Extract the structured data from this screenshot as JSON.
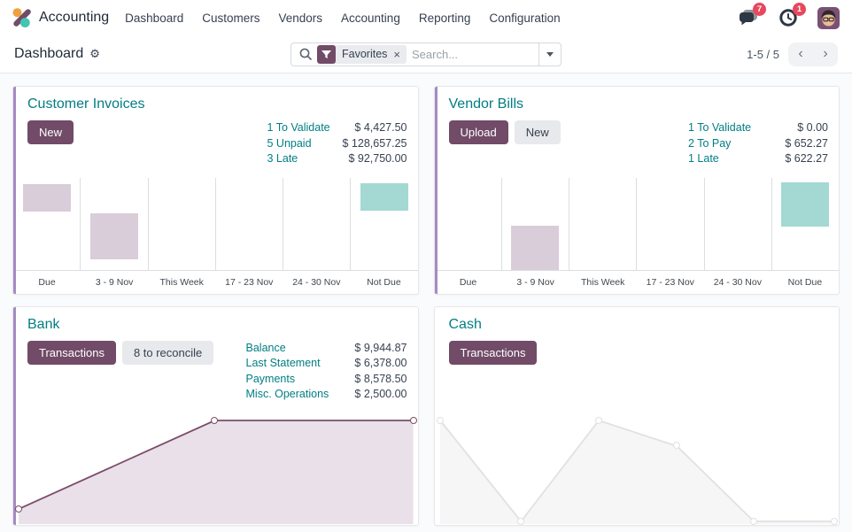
{
  "app": {
    "name": "Accounting"
  },
  "nav": {
    "items": [
      "Dashboard",
      "Customers",
      "Vendors",
      "Accounting",
      "Reporting",
      "Configuration"
    ]
  },
  "topbar": {
    "messages_badge": "7",
    "activities_badge": "1"
  },
  "control": {
    "title": "Dashboard",
    "gear_glyph": "⚙",
    "filter_chip": "Favorites",
    "chip_close_glyph": "×",
    "search_placeholder": "Search...",
    "pager_text": "1-5 / 5",
    "prev_glyph": "‹",
    "next_glyph": "›"
  },
  "colors": {
    "primary": "#714B67",
    "teal_text": "#017E84",
    "stripe": "#A58BC5",
    "mauve": "#D9CDD9",
    "teal_bar": "#A4D8D3",
    "bank_line": "#7B4C68",
    "bank_fill": "#E9E0E9",
    "cash_line": "#E2E0E1",
    "cash_fill": "#F7F6F7",
    "badge": "#E7485E"
  },
  "cards": [
    {
      "title": "Customer Invoices",
      "accent_stripe": true,
      "buttons": [
        {
          "label": "New",
          "style": "primary"
        }
      ],
      "stats": [
        {
          "label": "1 To Validate",
          "value": "$ 4,427.50"
        },
        {
          "label": "5 Unpaid",
          "value": "$ 128,657.25"
        },
        {
          "label": "3 Late",
          "value": "$ 92,750.00"
        }
      ],
      "chart": {
        "type": "bar",
        "categories": [
          "Due",
          "3 - 9 Nov",
          "This Week",
          "17 - 23 Nov",
          "24 - 30 Nov",
          "Not Due"
        ],
        "bars": [
          {
            "col": 0,
            "top_pct": 7,
            "height_pct": 30,
            "color": "mauve"
          },
          {
            "col": 1,
            "top_pct": 38,
            "height_pct": 50,
            "color": "mauve"
          },
          {
            "col": 5,
            "top_pct": 6,
            "height_pct": 30,
            "color": "teal_bar"
          }
        ]
      }
    },
    {
      "title": "Vendor Bills",
      "accent_stripe": true,
      "buttons": [
        {
          "label": "Upload",
          "style": "primary"
        },
        {
          "label": "New",
          "style": "secondary"
        }
      ],
      "stats": [
        {
          "label": "1 To Validate",
          "value": "$ 0.00"
        },
        {
          "label": "2 To Pay",
          "value": "$ 652.27"
        },
        {
          "label": "1 Late",
          "value": "$ 622.27"
        }
      ],
      "chart": {
        "type": "bar",
        "categories": [
          "Due",
          "3 - 9 Nov",
          "This Week",
          "17 - 23 Nov",
          "24 - 30 Nov",
          "Not Due"
        ],
        "bars": [
          {
            "col": 1,
            "top_pct": 52,
            "height_pct": 48,
            "color": "mauve"
          },
          {
            "col": 5,
            "top_pct": 5,
            "height_pct": 48,
            "color": "teal_bar"
          }
        ]
      }
    },
    {
      "title": "Bank",
      "accent_stripe": true,
      "buttons": [
        {
          "label": "Transactions",
          "style": "primary"
        },
        {
          "label": "8 to reconcile",
          "style": "secondary"
        }
      ],
      "stats": [
        {
          "label": "Balance",
          "value": "$ 9,944.87"
        },
        {
          "label": "Last Statement",
          "value": "$ 6,378.00"
        },
        {
          "label": "Payments",
          "value": "$ 8,578.50"
        },
        {
          "label": "Misc. Operations",
          "value": "$ 2,500.00"
        }
      ],
      "chart": {
        "type": "line",
        "stroke_key": "bank_line",
        "fill_key": "bank_fill",
        "points": [
          [
            0,
            0.87
          ],
          [
            0.497,
            0.1
          ],
          [
            1,
            0.1
          ]
        ]
      }
    },
    {
      "title": "Cash",
      "accent_stripe": false,
      "buttons": [
        {
          "label": "Transactions",
          "style": "primary"
        }
      ],
      "stats": [],
      "chart": {
        "type": "line",
        "stroke_key": "cash_line",
        "fill_key": "cash_fill",
        "points": [
          [
            0,
            0.1
          ],
          [
            0.205,
            0.977
          ],
          [
            0.402,
            0.1
          ],
          [
            0.6,
            0.323
          ],
          [
            0.795,
            0.977
          ],
          [
            1,
            0.977
          ]
        ]
      }
    }
  ]
}
